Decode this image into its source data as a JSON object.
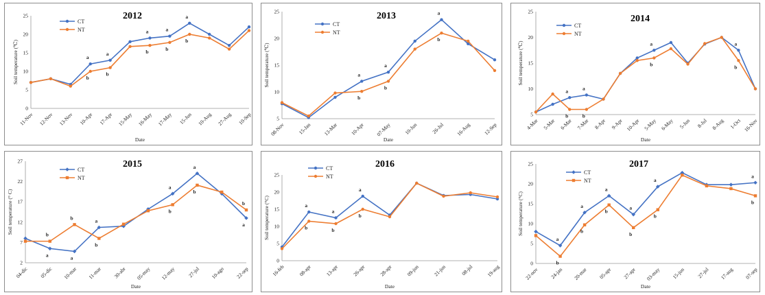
{
  "colors": {
    "ct": "#4472C4",
    "nt": "#ED7D31"
  },
  "legend": {
    "ct": "CT",
    "nt": "NT"
  },
  "chart_data": [
    {
      "type": "line",
      "title": "2012",
      "xlabel": "Date",
      "ylabel": "Soil temperature (℃)",
      "categories": [
        "11-Nov",
        "12-Nov",
        "13-Nov",
        "10-Apr",
        "17-Apr",
        "15-May",
        "16-May",
        "17-May",
        "15-Jun",
        "10-Aug",
        "27-Aug",
        "10-Sep"
      ],
      "ylim": [
        0,
        25
      ],
      "yticks": [
        0,
        5,
        10,
        15,
        20,
        25
      ],
      "grid": false,
      "legend_position": "top-left",
      "series": [
        {
          "name": "CT",
          "values": [
            7,
            8,
            6.5,
            12,
            13,
            18,
            19,
            19.5,
            23,
            20,
            17,
            22
          ]
        },
        {
          "name": "NT",
          "values": [
            7,
            8,
            6,
            10,
            11,
            16.7,
            17,
            17.8,
            20,
            19,
            16,
            21
          ]
        }
      ],
      "annotations": [
        {
          "index": 3,
          "ct": "a",
          "nt": "b"
        },
        {
          "index": 4,
          "ct": "a",
          "nt": "b"
        },
        {
          "index": 6,
          "ct": "a",
          "nt": "b"
        },
        {
          "index": 7,
          "ct": "a",
          "nt": "b"
        },
        {
          "index": 8,
          "ct": "a",
          "nt": "b"
        }
      ]
    },
    {
      "type": "line",
      "title": "2013",
      "xlabel": "Date",
      "ylabel": "Soil temperature (℃)",
      "categories": [
        "08-Nov",
        "15-Jan",
        "13-Mar",
        "10-Apr",
        "07-May",
        "10-Jun",
        "26-Jul",
        "16-Aug",
        "12-Sep"
      ],
      "ylim": [
        5,
        25
      ],
      "yticks": [
        5,
        10,
        15,
        20,
        25
      ],
      "grid": false,
      "legend_position": "top-left",
      "series": [
        {
          "name": "CT",
          "values": [
            7.8,
            5.2,
            9,
            12,
            13.7,
            19.5,
            23.5,
            19,
            16
          ]
        },
        {
          "name": "NT",
          "values": [
            8,
            5.5,
            9.8,
            10.1,
            12,
            18,
            21,
            19.5,
            14
          ]
        }
      ],
      "annotations": [
        {
          "index": 3,
          "ct": "a",
          "nt": "b"
        },
        {
          "index": 4,
          "ct": "a",
          "nt": "b"
        },
        {
          "index": 6,
          "ct": "a",
          "nt": "b"
        }
      ]
    },
    {
      "type": "line",
      "title": "2014",
      "xlabel": "Date",
      "ylabel": "Soil temperature (℃)",
      "categories": [
        "4-Mar",
        "5-Mar",
        "6-Mar",
        "7-Mar",
        "8-Apr",
        "9-Apr",
        "10-Apr",
        "5-May",
        "6-May",
        "5-Jun",
        "8-Jul",
        "8-Aug",
        "1-Oct",
        "16-Nov"
      ],
      "ylim": [
        5,
        25
      ],
      "yticks": [
        5,
        10,
        15,
        20,
        25
      ],
      "grid": false,
      "legend_position": "top-left",
      "series": [
        {
          "name": "CT",
          "values": [
            5.5,
            7,
            8.3,
            8.8,
            8,
            13,
            16,
            17.5,
            19,
            15,
            18.7,
            20,
            17.5,
            10
          ]
        },
        {
          "name": "NT",
          "values": [
            5.5,
            9,
            6,
            6,
            8,
            13,
            15.5,
            16,
            17.8,
            14.8,
            18.8,
            20,
            15.5,
            10
          ]
        }
      ],
      "annotations": [
        {
          "index": 2,
          "ct": "a",
          "nt": "b"
        },
        {
          "index": 3,
          "ct": "a",
          "nt": "b"
        },
        {
          "index": 7,
          "ct": "a",
          "nt": "b"
        },
        {
          "index": 12,
          "ct": "a",
          "nt": "b"
        }
      ]
    },
    {
      "type": "line",
      "title": "2015",
      "xlabel": "Date",
      "ylabel": "Soil temperature (° C)",
      "categories": [
        "04-dic",
        "05-dic",
        "10-mar",
        "11-mar",
        "30-abr",
        "05-may",
        "12-may",
        "27-jul",
        "10-ago",
        "22-sep"
      ],
      "ylim": [
        2,
        27
      ],
      "yticks": [
        2,
        7,
        12,
        17,
        22,
        27
      ],
      "grid": false,
      "legend_position": "top-left",
      "series": [
        {
          "name": "CT",
          "values": [
            8,
            5.5,
            4.8,
            10.7,
            11,
            15.2,
            19,
            24,
            19,
            13
          ]
        },
        {
          "name": "NT",
          "values": [
            7.3,
            7.3,
            11.4,
            8,
            11.5,
            14.8,
            16.3,
            21.1,
            19.4,
            15
          ]
        }
      ],
      "annotations": [
        {
          "index": 1,
          "ct": "a",
          "nt": "b"
        },
        {
          "index": 2,
          "ct": "a",
          "nt": "b"
        },
        {
          "index": 3,
          "ct": "a",
          "nt": "b"
        },
        {
          "index": 6,
          "ct": "a",
          "nt": "b"
        },
        {
          "index": 7,
          "ct": "a",
          "nt": "b"
        },
        {
          "index": 9,
          "ct": "a",
          "nt": "b"
        }
      ]
    },
    {
      "type": "line",
      "title": "2016",
      "xlabel": "Date",
      "ylabel": "Soil temperature (°C)",
      "categories": [
        "16-feb",
        "08-apr",
        "13-apr",
        "26-apr",
        "28-apr",
        "09-jun",
        "21-jun",
        "08-jul",
        "19-aug"
      ],
      "ylim": [
        0,
        25
      ],
      "yticks": [
        0,
        5,
        10,
        15,
        20,
        25
      ],
      "grid": false,
      "legend_position": "top-left",
      "series": [
        {
          "name": "CT",
          "values": [
            4,
            14.2,
            12.5,
            18.8,
            13.3,
            22.6,
            19,
            19.3,
            18
          ]
        },
        {
          "name": "NT",
          "values": [
            3.5,
            11.5,
            10.8,
            15,
            12.8,
            22.6,
            18.8,
            19.8,
            18.6
          ]
        }
      ],
      "annotations": [
        {
          "index": 1,
          "ct": "a",
          "nt": "b"
        },
        {
          "index": 2,
          "ct": "a",
          "nt": "b"
        },
        {
          "index": 3,
          "ct": "a",
          "nt": "b"
        }
      ]
    },
    {
      "type": "line",
      "title": "2017",
      "xlabel": "Date",
      "ylabel": "Soil temperature (°C)",
      "categories": [
        "22-nov",
        "24-jan",
        "20-mar",
        "05-apr",
        "27-apr",
        "03-may",
        "15-jun",
        "27-jul",
        "17-aug",
        "07-sep"
      ],
      "ylim": [
        0,
        25
      ],
      "yticks": [
        0,
        5,
        10,
        15,
        20,
        25
      ],
      "grid": false,
      "legend_position": "top-left",
      "series": [
        {
          "name": "CT",
          "values": [
            8,
            4.5,
            12.8,
            17,
            12.3,
            19.3,
            22.8,
            19.8,
            19.8,
            20.3
          ]
        },
        {
          "name": "NT",
          "values": [
            7,
            1.8,
            9.7,
            14.7,
            9,
            13.5,
            22.2,
            19.5,
            18.8,
            17
          ]
        }
      ],
      "annotations": [
        {
          "index": 1,
          "ct": "a",
          "nt": "b"
        },
        {
          "index": 2,
          "ct": "a",
          "nt": "b"
        },
        {
          "index": 3,
          "ct": "a",
          "nt": "b"
        },
        {
          "index": 4,
          "ct": "a",
          "nt": "b"
        },
        {
          "index": 5,
          "ct": "a",
          "nt": "b"
        },
        {
          "index": 9,
          "ct": "a",
          "nt": "b"
        }
      ]
    }
  ]
}
